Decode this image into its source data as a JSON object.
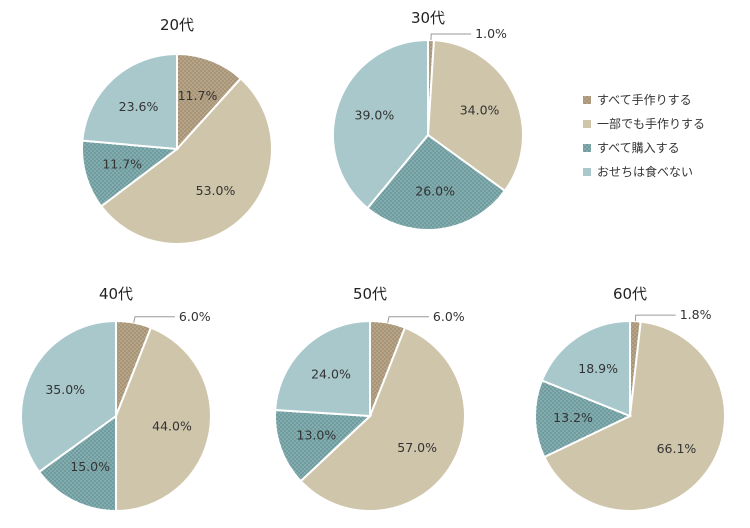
{
  "legend": [
    {
      "label": "すべて手作りする",
      "color": "#a89476",
      "pattern": "dots"
    },
    {
      "label": "一部でも手作りする",
      "color": "#cfc5aa",
      "pattern": "none"
    },
    {
      "label": "すべて購入する",
      "color": "#6e9c9f",
      "pattern": "dots"
    },
    {
      "label": "おせちは食べない",
      "color": "#a9c8cc",
      "pattern": "none"
    }
  ],
  "chart_data": [
    {
      "type": "pie",
      "title": "20代",
      "categories": [
        "すべて手作りする",
        "一部でも手作りする",
        "すべて購入する",
        "おせちは食べない"
      ],
      "values": [
        11.7,
        53.0,
        11.7,
        23.6
      ],
      "labels": [
        "11.7%",
        "53.0%",
        "11.7%",
        "23.6%"
      ]
    },
    {
      "type": "pie",
      "title": "30代",
      "categories": [
        "すべて手作りする",
        "一部でも手作りする",
        "すべて購入する",
        "おせちは食べない"
      ],
      "values": [
        1.0,
        34.0,
        26.0,
        39.0
      ],
      "labels": [
        "1.0%",
        "34.0%",
        "26.0%",
        "39.0%"
      ]
    },
    {
      "type": "pie",
      "title": "40代",
      "categories": [
        "すべて手作りする",
        "一部でも手作りする",
        "すべて購入する",
        "おせちは食べない"
      ],
      "values": [
        6.0,
        44.0,
        15.0,
        35.0
      ],
      "labels": [
        "6.0%",
        "44.0%",
        "15.0%",
        "35.0%"
      ]
    },
    {
      "type": "pie",
      "title": "50代",
      "categories": [
        "すべて手作りする",
        "一部でも手作りする",
        "すべて購入する",
        "おせちは食べない"
      ],
      "values": [
        6.0,
        57.0,
        13.0,
        24.0
      ],
      "labels": [
        "6.0%",
        "57.0%",
        "13.0%",
        "24.0%"
      ]
    },
    {
      "type": "pie",
      "title": "60代",
      "categories": [
        "すべて手作りする",
        "一部でも手作りする",
        "すべて購入する",
        "おせちは食べない"
      ],
      "values": [
        1.8,
        66.1,
        13.2,
        18.9
      ],
      "labels": [
        "1.8%",
        "66.1%",
        "13.2%",
        "18.9%"
      ]
    }
  ]
}
